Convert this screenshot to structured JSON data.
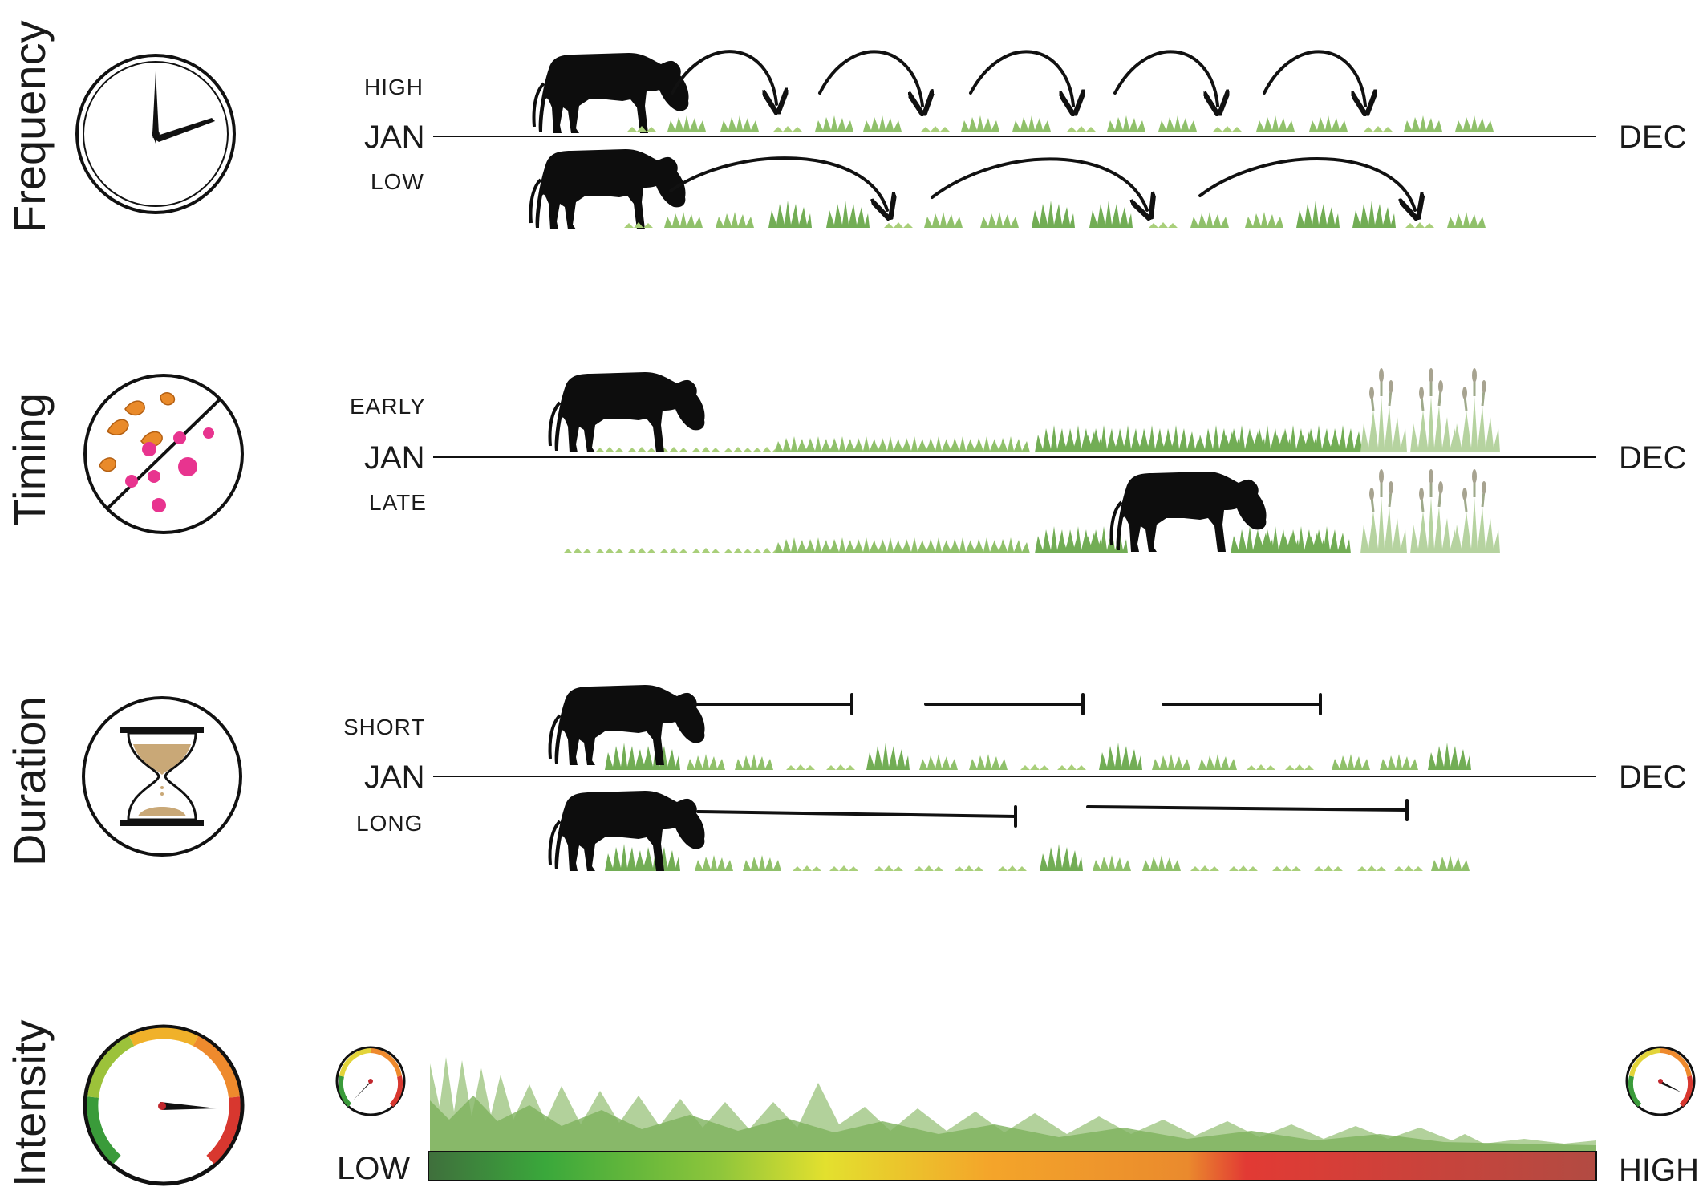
{
  "panels": {
    "frequency": {
      "title": "Frequency",
      "icon": "clock-icon",
      "start_label": "JAN",
      "end_label": "DEC",
      "rows": [
        {
          "label": "HIGH",
          "grazing_events": 6,
          "rest_arrows": 5
        },
        {
          "label": "LOW",
          "grazing_events": 4,
          "rest_arrows": 3
        }
      ]
    },
    "timing": {
      "title": "Timing",
      "icon": "seasons-icon",
      "start_label": "JAN",
      "end_label": "DEC",
      "rows": [
        {
          "label": "EARLY"
        },
        {
          "label": "LATE"
        }
      ]
    },
    "duration": {
      "title": "Duration",
      "icon": "hourglass-icon",
      "start_label": "JAN",
      "end_label": "DEC",
      "rows": [
        {
          "label": "SHORT",
          "grazing_periods": 3
        },
        {
          "label": "LONG",
          "grazing_periods": 2
        }
      ]
    },
    "intensity": {
      "title": "Intensity",
      "icon": "gauge-icon",
      "low_label": "LOW",
      "high_label": "HIGH"
    }
  },
  "colors": {
    "cow": "#0d0d0d",
    "grass_light": "#a9cf7a",
    "grass_mid": "#7cb55a",
    "grass_dark": "#5f9e48",
    "leaf_orange": "#e98a2a",
    "flower_pink": "#e8348f",
    "sand": "#c9a877",
    "gradient": [
      "#3f6f3c",
      "#3aa83b",
      "#8fc63b",
      "#e3e02e",
      "#f4a52a",
      "#ea8a2d",
      "#e23a34",
      "#b24b42"
    ]
  }
}
